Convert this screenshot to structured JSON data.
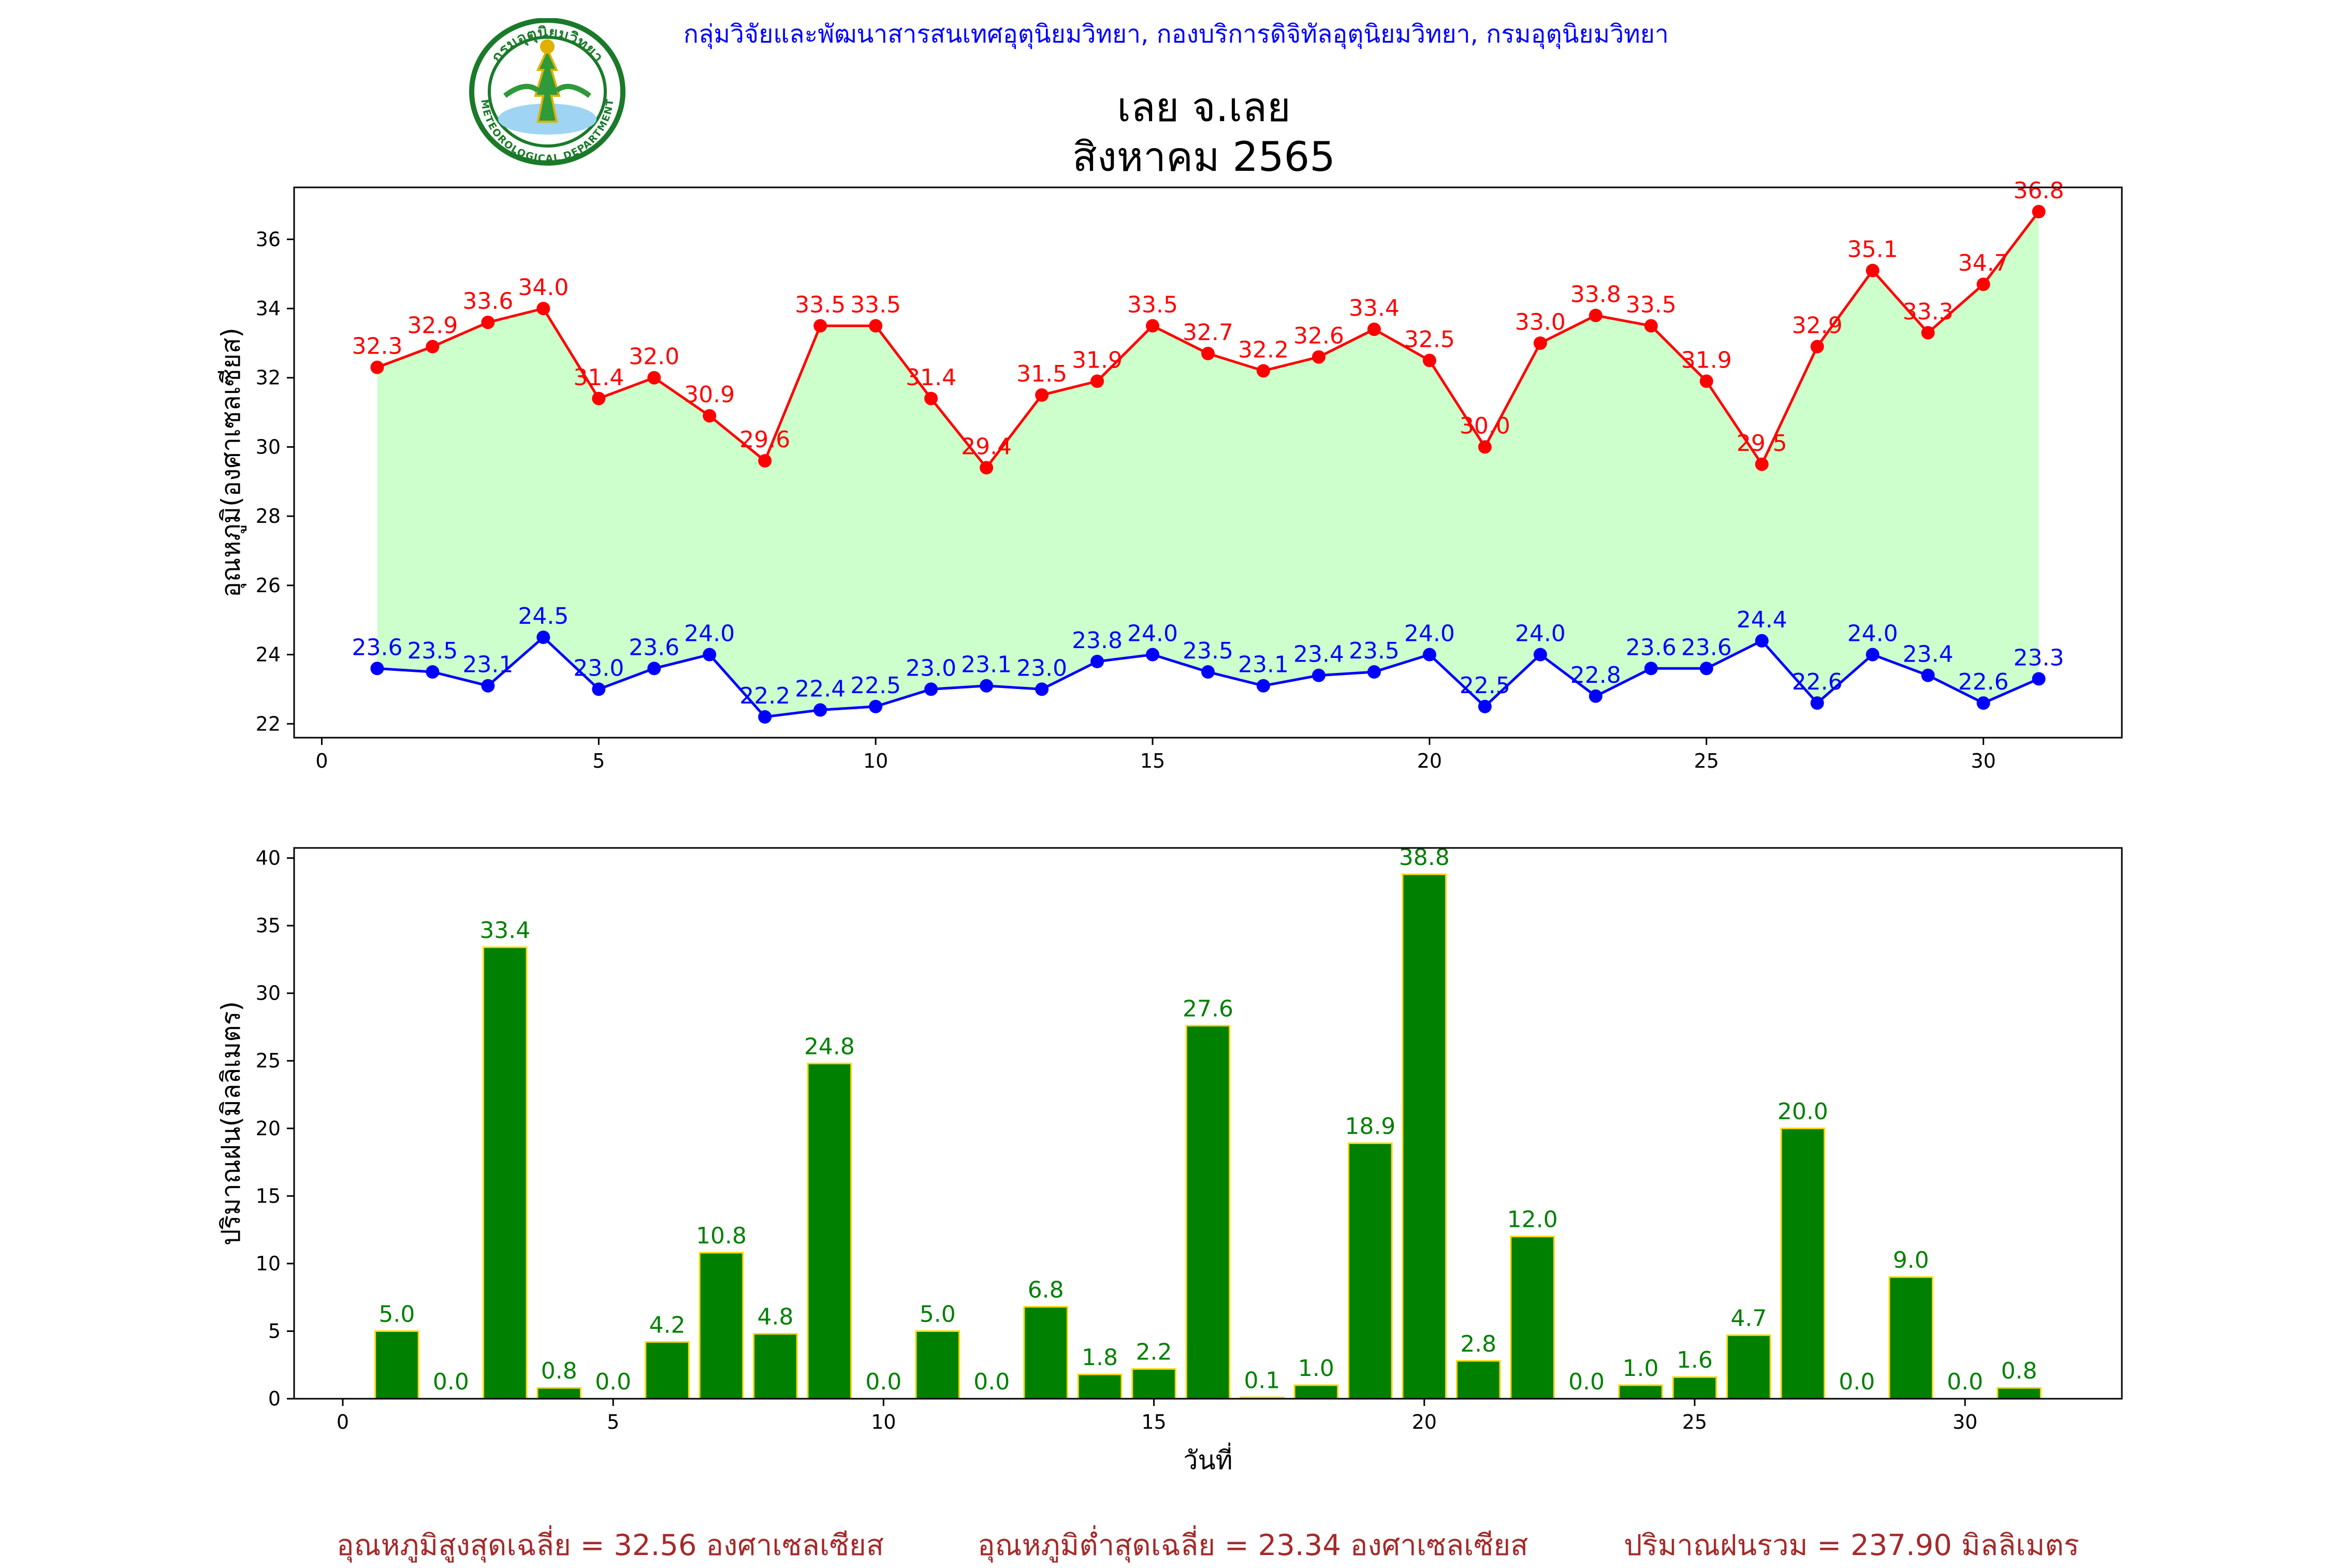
{
  "header": {
    "agency": "กลุ่มวิจัยและพัฒนาสารสนเทศอุตุนิยมวิทยา, กองบริการดิจิทัลอุตุนิยมวิทยา, กรมอุตุนิยมวิทยา",
    "logo_text_top": "กรมอุตุนิยมวิทยา",
    "logo_text_bottom": "METEOROLOGICAL DEPARTMENT"
  },
  "title": {
    "line1": "เลย จ.เลย",
    "line2": "สิงหาคม 2565"
  },
  "colors": {
    "max_temp": "#ff0000",
    "min_temp": "#0000ff",
    "fill": "#ccffcc",
    "rain_bar": "#008000",
    "rain_edge": "#ffd700",
    "footer": "#a52a2a",
    "header": "#0000ff"
  },
  "chart_data": [
    {
      "type": "line",
      "x": [
        1,
        2,
        3,
        4,
        5,
        6,
        7,
        8,
        9,
        10,
        11,
        12,
        13,
        14,
        15,
        16,
        17,
        18,
        19,
        20,
        21,
        22,
        23,
        24,
        25,
        26,
        27,
        28,
        29,
        30,
        31
      ],
      "series": [
        {
          "values": [
            32.3,
            32.9,
            33.6,
            34.0,
            31.4,
            32.0,
            30.9,
            29.6,
            33.5,
            33.5,
            31.4,
            29.4,
            31.5,
            31.9,
            33.5,
            32.7,
            32.2,
            32.6,
            33.4,
            32.5,
            30.0,
            33.0,
            33.8,
            33.5,
            31.9,
            29.5,
            32.9,
            35.1,
            33.3,
            34.7,
            36.8
          ]
        },
        {
          "values": [
            23.6,
            23.5,
            23.1,
            24.5,
            23.0,
            23.6,
            24.0,
            22.2,
            22.4,
            22.5,
            23.0,
            23.1,
            23.0,
            23.8,
            24.0,
            23.5,
            23.1,
            23.4,
            23.5,
            24.0,
            22.5,
            24.0,
            22.8,
            23.6,
            23.6,
            24.4,
            22.6,
            24.0,
            23.4,
            22.6,
            23.3
          ]
        }
      ],
      "fill_between": true,
      "ylabel": "อุณหภูมิ(องศาเซลเซียส)",
      "xlim": [
        -0.5,
        32.5
      ],
      "ylim": [
        21.6,
        37.5
      ],
      "xticks": [
        0,
        5,
        10,
        15,
        20,
        25,
        30
      ],
      "yticks": [
        22,
        24,
        26,
        28,
        30,
        32,
        34,
        36
      ],
      "grid": false
    },
    {
      "type": "bar",
      "x": [
        1,
        2,
        3,
        4,
        5,
        6,
        7,
        8,
        9,
        10,
        11,
        12,
        13,
        14,
        15,
        16,
        17,
        18,
        19,
        20,
        21,
        22,
        23,
        24,
        25,
        26,
        27,
        28,
        29,
        30,
        31
      ],
      "values": [
        5.0,
        0.0,
        33.4,
        0.8,
        0.0,
        4.2,
        10.8,
        4.8,
        24.8,
        0.0,
        5.0,
        0.0,
        6.8,
        1.8,
        2.2,
        27.6,
        0.1,
        1.0,
        18.9,
        38.8,
        2.8,
        12.0,
        0.0,
        1.0,
        1.6,
        4.7,
        20.0,
        0.0,
        9.0,
        0.0,
        0.8
      ],
      "xlabel": "วันที่",
      "ylabel": "ปริมาณฝน(มิลลิเมตร)",
      "xlim": [
        -0.9,
        32.9
      ],
      "ylim": [
        0,
        40.75
      ],
      "xticks": [
        0,
        5,
        10,
        15,
        20,
        25,
        30
      ],
      "yticks": [
        0,
        5,
        10,
        15,
        20,
        25,
        30,
        35,
        40
      ],
      "grid": false
    }
  ],
  "footer": {
    "avg_max": "อุณหภูมิสูงสุดเฉลี่ย = 32.56 องศาเซลเซียส",
    "avg_min": "อุณหภูมิต่ำสุดเฉลี่ย = 23.34 องศาเซลเซียส",
    "total_rain": "ปริมาณฝนรวม = 237.90 มิลลิเมตร"
  }
}
